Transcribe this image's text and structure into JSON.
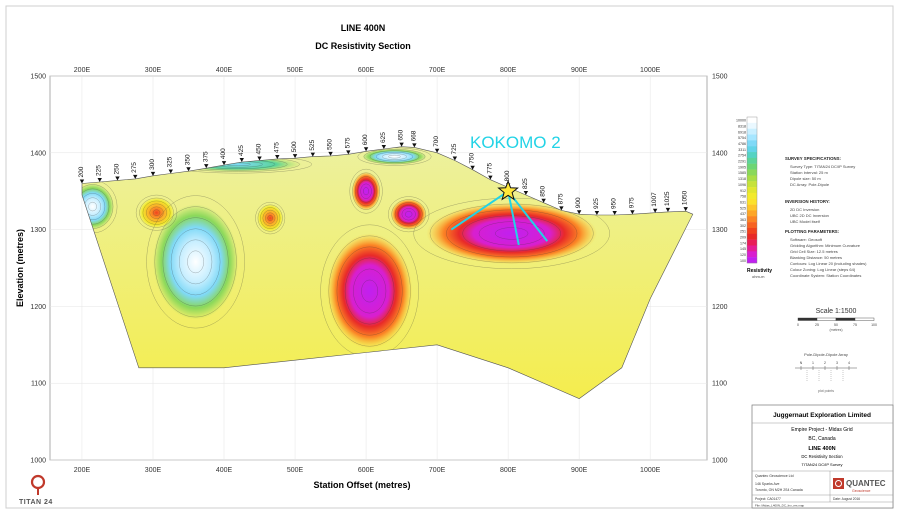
{
  "header": {
    "title": "LINE 400N",
    "subtitle": "DC Resistivity Section"
  },
  "annotation": {
    "label": "KOKOMO 2",
    "color": "#22d3e6"
  },
  "chart_data": {
    "type": "heatmap",
    "title": "LINE 400N",
    "subtitle": "DC Resistivity Section",
    "xlabel": "Station Offset (metres)",
    "ylabel": "Elevation (metres)",
    "xlim": [
      155,
      1080
    ],
    "ylim": [
      1000,
      1500
    ],
    "x_ticks": [
      "200E",
      "300E",
      "400E",
      "500E",
      "600E",
      "700E",
      "800E",
      "900E",
      "1000E"
    ],
    "x_tick_values": [
      200,
      300,
      400,
      500,
      600,
      700,
      800,
      900,
      1000
    ],
    "y_ticks": [
      "1000",
      "1100",
      "1200",
      "1300",
      "1400",
      "1500"
    ],
    "y_tick_values": [
      1000,
      1100,
      1200,
      1300,
      1400,
      1500
    ],
    "stations": [
      {
        "label": "200",
        "x": 200,
        "z": 1360
      },
      {
        "label": "225",
        "x": 225,
        "z": 1362
      },
      {
        "label": "250",
        "x": 250,
        "z": 1364
      },
      {
        "label": "275",
        "x": 275,
        "z": 1366
      },
      {
        "label": "300",
        "x": 300,
        "z": 1370
      },
      {
        "label": "325",
        "x": 325,
        "z": 1373
      },
      {
        "label": "350",
        "x": 350,
        "z": 1376
      },
      {
        "label": "375",
        "x": 375,
        "z": 1380
      },
      {
        "label": "400",
        "x": 400,
        "z": 1384
      },
      {
        "label": "425",
        "x": 425,
        "z": 1388
      },
      {
        "label": "450",
        "x": 450,
        "z": 1390
      },
      {
        "label": "475",
        "x": 475,
        "z": 1392
      },
      {
        "label": "500",
        "x": 500,
        "z": 1393
      },
      {
        "label": "525",
        "x": 525,
        "z": 1395
      },
      {
        "label": "550",
        "x": 550,
        "z": 1396
      },
      {
        "label": "575",
        "x": 575,
        "z": 1398
      },
      {
        "label": "600",
        "x": 600,
        "z": 1402
      },
      {
        "label": "625",
        "x": 625,
        "z": 1405
      },
      {
        "label": "650",
        "x": 650,
        "z": 1408
      },
      {
        "label": "668",
        "x": 668,
        "z": 1407
      },
      {
        "label": "700",
        "x": 700,
        "z": 1400
      },
      {
        "label": "725",
        "x": 725,
        "z": 1390
      },
      {
        "label": "750",
        "x": 750,
        "z": 1378
      },
      {
        "label": "775",
        "x": 775,
        "z": 1365
      },
      {
        "label": "800",
        "x": 800,
        "z": 1355
      },
      {
        "label": "825",
        "x": 825,
        "z": 1345
      },
      {
        "label": "850",
        "x": 850,
        "z": 1335
      },
      {
        "label": "875",
        "x": 875,
        "z": 1325
      },
      {
        "label": "900",
        "x": 900,
        "z": 1320
      },
      {
        "label": "925",
        "x": 925,
        "z": 1319
      },
      {
        "label": "950",
        "x": 950,
        "z": 1319
      },
      {
        "label": "975",
        "x": 975,
        "z": 1320
      },
      {
        "label": "1007",
        "x": 1007,
        "z": 1322
      },
      {
        "label": "1025",
        "x": 1025,
        "z": 1323
      },
      {
        "label": "1050",
        "x": 1050,
        "z": 1324
      }
    ],
    "section_bottom": [
      {
        "x": 200,
        "z": 1345
      },
      {
        "x": 280,
        "z": 1120
      },
      {
        "x": 400,
        "z": 1120
      },
      {
        "x": 500,
        "z": 1130
      },
      {
        "x": 600,
        "z": 1140
      },
      {
        "x": 700,
        "z": 1150
      },
      {
        "x": 800,
        "z": 1120
      },
      {
        "x": 900,
        "z": 1080
      },
      {
        "x": 960,
        "z": 1120
      },
      {
        "x": 1000,
        "z": 1210
      },
      {
        "x": 1060,
        "z": 1320
      }
    ],
    "anomalies": [
      {
        "x": 360,
        "z": 1258,
        "r": "very-low",
        "rx": 60,
        "rz": 75
      },
      {
        "x": 215,
        "z": 1330,
        "r": "very-low",
        "rx": 30,
        "rz": 30
      },
      {
        "x": 305,
        "z": 1322,
        "r": "moderate",
        "rx": 25,
        "rz": 20
      },
      {
        "x": 465,
        "z": 1315,
        "r": "moderate",
        "rx": 18,
        "rz": 18
      },
      {
        "x": 605,
        "z": 1220,
        "r": "high",
        "rx": 60,
        "rz": 75
      },
      {
        "x": 805,
        "z": 1295,
        "r": "high",
        "rx": 120,
        "rz": 40
      },
      {
        "x": 600,
        "z": 1350,
        "r": "high",
        "rx": 20,
        "rz": 25
      },
      {
        "x": 660,
        "z": 1320,
        "r": "high",
        "rx": 25,
        "rz": 20
      },
      {
        "x": 420,
        "z": 1385,
        "r": "low",
        "rx": 90,
        "rz": 10
      },
      {
        "x": 640,
        "z": 1395,
        "r": "very-low",
        "rx": 45,
        "rz": 10
      }
    ],
    "target": {
      "label": "KOKOMO 2",
      "x": 800,
      "z": 1350
    },
    "drillholes": [
      {
        "x0": 800,
        "z0": 1350,
        "x1": 720,
        "z1": 1300
      },
      {
        "x0": 800,
        "z0": 1350,
        "x1": 815,
        "z1": 1280
      },
      {
        "x0": 800,
        "z0": 1350,
        "x1": 855,
        "z1": 1285
      }
    ],
    "color_scale": {
      "values": [
        "10000",
        "8318",
        "6918",
        "5754",
        "4786",
        "3311",
        "2754",
        "2291",
        "1905",
        "1585",
        "1318",
        "1096",
        "912",
        "758",
        "631",
        "525",
        "437",
        "363",
        "302",
        "251",
        "209",
        "174",
        "145",
        "120",
        "100"
      ],
      "colors": [
        "#ffffff",
        "#eaf8ff",
        "#c9efff",
        "#a6e6ff",
        "#7fd9f7",
        "#63d4e8",
        "#55d3c3",
        "#5cd49a",
        "#6dd574",
        "#8ad85a",
        "#a9dd46",
        "#c6e23a",
        "#e0e630",
        "#f2ea2c",
        "#fbe12b",
        "#fdc52a",
        "#fda628",
        "#fb8425",
        "#f76322",
        "#f0431f",
        "#e82a28",
        "#e81e58",
        "#e51d94",
        "#d81fcf",
        "#c020f0"
      ],
      "label": "Resistivity",
      "unit": "ohm-m"
    }
  },
  "side_panel": {
    "survey_title": "SURVEY SPECIFICATIONS:",
    "survey_lines": [
      "Survey Type: TITAN24 DC/IP Survey",
      "Station Interval: 25 m",
      "Dipole size: 50 m",
      "DC Array: Pole-Dipole"
    ],
    "inversion_title": "INVERSION HISTORY:",
    "inversion_lines": [
      "2D DC Inversion",
      "UBC 2D DC Inversion",
      "UBC Model itself"
    ],
    "plotting_title": "PLOTTING PARAMETERS:",
    "plotting_lines": [
      "Software: Geosoft",
      "Gridding Algorithm: Minimum Curvature",
      "Grid Cell Size: 12.5 metres",
      "Blanking Distance: 50 metres",
      "Contours: Log Linear 20 (including shades)",
      "Colour Zoning: Log Linear (steps 64)",
      "Coordinate System: Station Coordinates"
    ],
    "scale_label": "Scale 1:1500",
    "scale_unit": "(metres)",
    "scale_ticks": [
      "0",
      "25",
      "50",
      "75",
      "100"
    ],
    "array_label": "Pole-Dipole-Dipole Array",
    "array_ticks": [
      "N",
      "1",
      "2",
      "3",
      "4"
    ],
    "plot_points_label": "plot points"
  },
  "title_block": {
    "company": "Juggernaut Exploration Limited",
    "project": "Empire Project - Midas Grid",
    "region": "BC, Canada",
    "line": "LINE 400N",
    "section": "DC Resistivity Section",
    "survey": "TITAN24 DC/IP Survey",
    "contractor": "Quantec Geoscience Ltd",
    "contractor_address": "146 Sparks Ave",
    "contractor_city": "Toronto, ON M2H 2S4 Canada",
    "logo_text": "QUANTEC",
    "logo_sub": "Geoscience",
    "project_ref": "Project: CA01477",
    "date": "Date: August 2016",
    "file": "File: Midas_L400N_DC_Inv_res.map"
  },
  "logo": {
    "text": "TITAN 24"
  }
}
